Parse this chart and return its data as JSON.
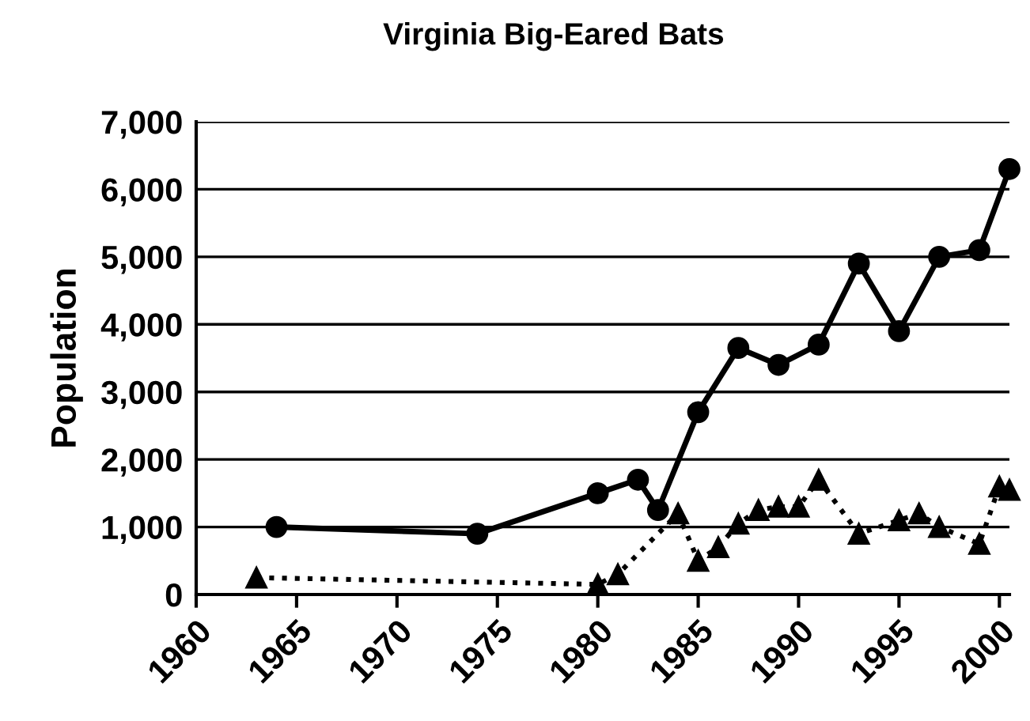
{
  "chart_data": {
    "type": "line",
    "title": "Virginia Big-Eared Bats",
    "ylabel": "Population",
    "series": [
      {
        "color": "#000000",
        "marker": "circle",
        "line_style": "solid",
        "x": [
          1964,
          1974,
          1980,
          1982,
          1983,
          1985,
          1987,
          1989,
          1991,
          1993,
          1995,
          1997,
          1999,
          2000.5
        ],
        "values": [
          1000,
          900,
          1500,
          1700,
          1250,
          2700,
          3650,
          3400,
          3700,
          4900,
          3900,
          5000,
          5100,
          6300
        ]
      },
      {
        "color": "#000000",
        "marker": "triangle",
        "line_style": "dotted",
        "x": [
          1963,
          1980,
          1981,
          1984,
          1985,
          1986,
          1987,
          1988,
          1989,
          1990,
          1991,
          1993,
          1995,
          1996,
          1997,
          1999,
          2000,
          2000.5
        ],
        "values": [
          250,
          150,
          300,
          1200,
          500,
          700,
          1050,
          1250,
          1300,
          1300,
          1700,
          900,
          1100,
          1200,
          1000,
          750,
          1600,
          1550
        ]
      }
    ],
    "xlim": [
      1960,
      2000.5
    ],
    "xticks": [
      1960,
      1965,
      1970,
      1975,
      1980,
      1985,
      1990,
      1995,
      2000
    ],
    "ylim": [
      0,
      7000
    ],
    "yticks": [
      {
        "value": 0,
        "label": "0"
      },
      {
        "value": 1000,
        "label": "1,000"
      },
      {
        "value": 2000,
        "label": "2,000"
      },
      {
        "value": 3000,
        "label": "3,000"
      },
      {
        "value": 4000,
        "label": "4,000"
      },
      {
        "value": 5000,
        "label": "5,000"
      },
      {
        "value": 6000,
        "label": "6,000"
      },
      {
        "value": 7000,
        "label": "7,000"
      }
    ],
    "grid": "y",
    "legend": false
  }
}
